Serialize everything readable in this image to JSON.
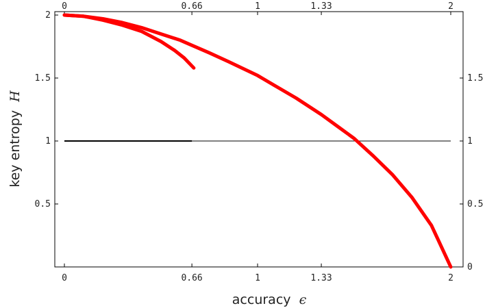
{
  "chart_data": {
    "type": "line",
    "xlabel": "accuracy",
    "xlabel_symbol": "ϵ",
    "ylabel": "key entropy",
    "ylabel_symbol": "H",
    "xlim": [
      0,
      2
    ],
    "ylim": [
      0,
      2
    ],
    "x_ticks": [
      0,
      0.66,
      1,
      1.33,
      2
    ],
    "x_tick_labels": [
      "0",
      "0.66",
      "1",
      "1.33",
      "2"
    ],
    "y_ticks_left": [
      0.5,
      1,
      1.5,
      2
    ],
    "y_tick_labels_left": [
      "0.5",
      "1",
      "1.5",
      "2"
    ],
    "y_ticks_right": [
      0,
      0.5,
      1,
      1.5
    ],
    "y_tick_labels_right": [
      "0",
      "0.5",
      "1",
      "1.5"
    ],
    "grid": false,
    "series_color": "#ff0000",
    "series": [
      {
        "x": [
          0,
          0.1,
          0.2,
          0.3,
          0.4,
          0.5,
          0.6,
          0.66,
          0.75,
          0.85,
          1.0,
          1.1,
          1.2,
          1.33,
          1.42,
          1.5,
          1.6,
          1.7,
          1.8,
          1.9,
          2.0
        ],
        "y": [
          2.0,
          1.99,
          1.97,
          1.94,
          1.9,
          1.85,
          1.8,
          1.76,
          1.7,
          1.63,
          1.52,
          1.43,
          1.34,
          1.21,
          1.11,
          1.02,
          0.88,
          0.73,
          0.55,
          0.33,
          0.0
        ]
      },
      {
        "x": [
          0,
          0.1,
          0.2,
          0.3,
          0.4,
          0.5,
          0.57,
          0.62,
          0.67
        ],
        "y": [
          2.0,
          1.99,
          1.96,
          1.92,
          1.87,
          1.79,
          1.72,
          1.66,
          1.58
        ]
      }
    ],
    "reference_lines": [
      {
        "y": 1,
        "x_from": 0,
        "x_to": 2,
        "color": "#000000",
        "width": 1
      },
      {
        "y": 1,
        "x_from": 0,
        "x_to": 0.66,
        "color": "#000000",
        "width": 2
      }
    ]
  }
}
